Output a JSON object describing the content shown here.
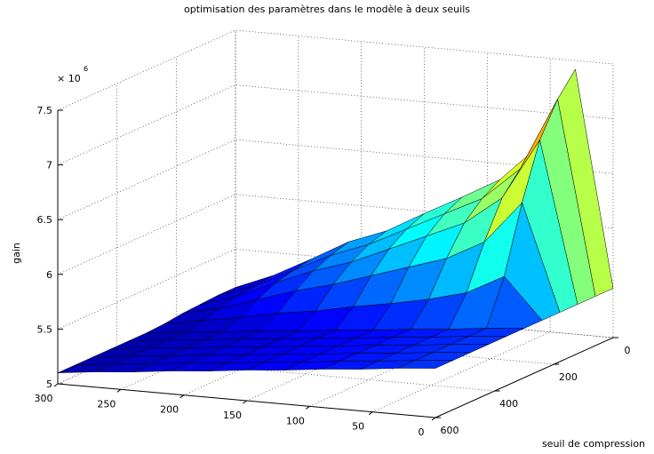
{
  "chart_data": {
    "type": "surface",
    "title": "optimisation des paramètres dans le modèle à deux seuils",
    "zlabel": "gain",
    "xlabel": "seuil de compression",
    "zscale_label": {
      "base": "× 10",
      "exponent": "6"
    },
    "x": [
      0,
      60,
      120,
      180,
      240,
      300,
      360,
      420,
      480,
      540,
      600
    ],
    "y": [
      0,
      30,
      60,
      90,
      120,
      150,
      180,
      210,
      240,
      270,
      300
    ],
    "z": [
      [
        5.45,
        5.45,
        5.45,
        5.45,
        5.45,
        5.45,
        5.45,
        5.45,
        5.45,
        5.45,
        5.45
      ],
      [
        7.42,
        7.22,
        6.92,
        6.42,
        5.82,
        5.42,
        5.42,
        5.42,
        5.42,
        5.42,
        5.42
      ],
      [
        6.68,
        6.55,
        6.36,
        6.03,
        5.64,
        5.38,
        5.38,
        5.38,
        5.38,
        5.38,
        5.38
      ],
      [
        6.35,
        6.25,
        6.1,
        5.85,
        5.55,
        5.35,
        5.35,
        5.35,
        5.35,
        5.35,
        5.35
      ],
      [
        6.16,
        6.08,
        5.95,
        5.74,
        5.48,
        5.31,
        5.31,
        5.31,
        5.31,
        5.31,
        5.31
      ],
      [
        5.98,
        5.91,
        5.8,
        5.63,
        5.42,
        5.28,
        5.28,
        5.28,
        5.28,
        5.28,
        5.28
      ],
      [
        5.79,
        5.74,
        5.65,
        5.52,
        5.35,
        5.24,
        5.24,
        5.24,
        5.24,
        5.24,
        5.24
      ],
      [
        5.66,
        5.61,
        5.54,
        5.43,
        5.3,
        5.21,
        5.21,
        5.21,
        5.21,
        5.21,
        5.21
      ],
      [
        5.47,
        5.44,
        5.4,
        5.32,
        5.23,
        5.17,
        5.17,
        5.17,
        5.17,
        5.17,
        5.17
      ],
      [
        5.29,
        5.27,
        5.25,
        5.21,
        5.17,
        5.14,
        5.14,
        5.14,
        5.14,
        5.14,
        5.14
      ],
      [
        5.15,
        5.15,
        5.14,
        5.13,
        5.11,
        5.1,
        5.1,
        5.1,
        5.1,
        5.1,
        5.1
      ]
    ],
    "xlim": [
      0,
      600
    ],
    "ylim": [
      0,
      300
    ],
    "zlim": [
      5,
      7.5
    ],
    "xticks": [
      0,
      200,
      400,
      600
    ],
    "yticks": [
      0,
      50,
      100,
      150,
      200,
      250,
      300
    ],
    "zticks": [
      5,
      5.5,
      6,
      6.5,
      7,
      7.5
    ],
    "colormap": "jet",
    "grid": true
  }
}
